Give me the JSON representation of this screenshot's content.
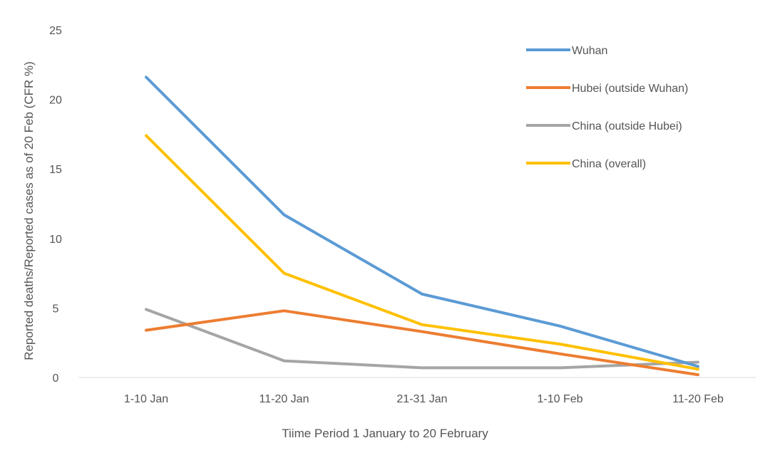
{
  "chart_data": {
    "type": "line",
    "title": "",
    "xlabel": "Tiime Period 1 January to 20 February",
    "ylabel": "Reported deaths/Reported cases as of 20 Feb (CFR %)",
    "categories": [
      "1-10 Jan",
      "11-20 Jan",
      "21-31 Jan",
      "1-10 Feb",
      "11-20 Feb"
    ],
    "ylim": [
      0,
      25
    ],
    "yticks": [
      0,
      5,
      10,
      15,
      20,
      25
    ],
    "grid": false,
    "legend": "top-right",
    "series": [
      {
        "name": "Wuhan",
        "color": "#5B9BD5",
        "values": [
          21.6,
          11.7,
          6.0,
          3.7,
          0.8
        ]
      },
      {
        "name": "Hubei (outside Wuhan)",
        "color": "#ED7D31",
        "values": [
          3.4,
          4.8,
          3.3,
          1.7,
          0.2
        ]
      },
      {
        "name": "China (outside Hubei)",
        "color": "#A5A5A5",
        "values": [
          4.9,
          1.2,
          0.7,
          0.7,
          1.1
        ]
      },
      {
        "name": "China (overall)",
        "color": "#FFC000",
        "values": [
          17.4,
          7.5,
          3.8,
          2.4,
          0.6
        ]
      }
    ]
  }
}
